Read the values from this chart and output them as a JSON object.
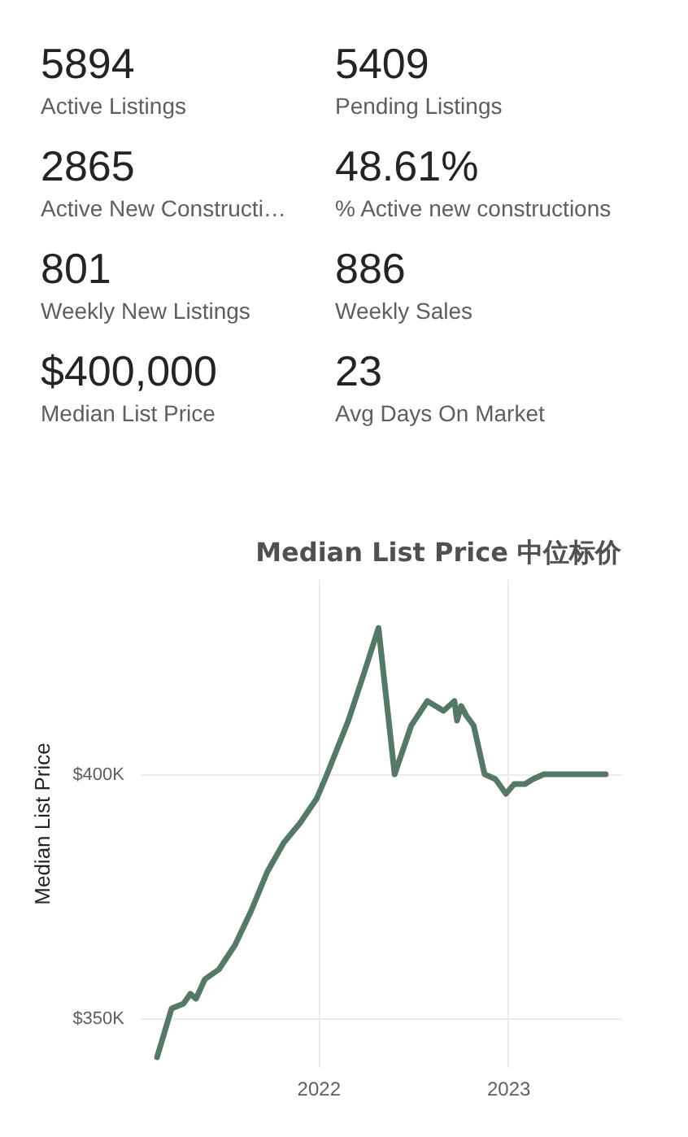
{
  "chart_data": [
    {
      "type": "other",
      "annotations": [
        "5894",
        "Active Listings",
        "5409",
        "Pending Listings",
        "2865",
        "Active New Constructi…",
        "48.61%",
        "% Active new constructions",
        "801",
        "Weekly New Listings",
        "886",
        "Weekly Sales",
        "$400,000",
        "Median List Price",
        "23",
        "Avg Days On Market"
      ]
    },
    {
      "type": "line",
      "title": "Median List Price  中位标价",
      "ylabel": "Median List Price",
      "color": "#567867",
      "x": [
        "2021-02-25",
        "2021-03-25",
        "2021-04-17",
        "2021-04-30",
        "2021-05-11",
        "2021-05-28",
        "2021-06-24",
        "2021-07-25",
        "2021-08-25",
        "2021-09-25",
        "2021-10-27",
        "2021-11-27",
        "2021-12-29",
        "2022-01-18",
        "2022-02-28",
        "2022-03-31",
        "2022-04-27",
        "2022-05-28",
        "2022-06-29",
        "2022-07-30",
        "2022-08-30",
        "2022-09-20",
        "2022-09-25",
        "2022-10-03",
        "2022-10-13",
        "2022-10-27",
        "2022-11-17",
        "2022-12-08",
        "2022-12-28",
        "2023-01-13",
        "2023-02-03",
        "2023-02-18",
        "2023-03-11",
        "2023-04-01",
        "2023-07-08"
      ],
      "values": [
        342000,
        352000,
        353000,
        355000,
        354000,
        358000,
        360000,
        365000,
        372000,
        380000,
        386000,
        390000,
        395000,
        400000,
        411000,
        421000,
        430000,
        400000,
        410000,
        415000,
        413000,
        415000,
        411000,
        414000,
        412000,
        410000,
        400000,
        399000,
        396000,
        398000,
        398000,
        399000,
        400000,
        400000,
        400000
      ],
      "xlim": [
        "2021-01-23",
        "2023-08-07"
      ],
      "ylim": [
        340000,
        440000
      ],
      "xticks": [
        "2022",
        "2023"
      ],
      "yticks": [
        {
          "value": 350000,
          "label": "$350K"
        },
        {
          "value": 400000,
          "label": "$400K"
        }
      ],
      "grid": true
    }
  ]
}
